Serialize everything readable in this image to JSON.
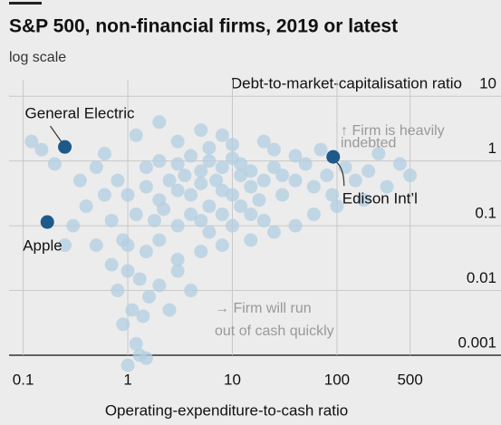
{
  "chart_data": {
    "type": "scatter",
    "title": "S&P 500, non-financial firms, 2019 or latest",
    "subtitle": "log scale",
    "y_axis_label": "Debt-to-market-capitalisation ratio",
    "x_axis_label": "Operating-expenditure-to-cash ratio",
    "xscale": "log",
    "yscale": "log",
    "xlim": [
      0.06,
      3700
    ],
    "ylim": [
      0.001,
      18
    ],
    "xticks": [
      0.1,
      1,
      10,
      100,
      500
    ],
    "yticks": [
      0.001,
      0.01,
      0.1,
      1,
      10
    ],
    "grid": true,
    "color": "#b3cfe2",
    "x": [
      1,
      1.5,
      2,
      2.5,
      3,
      3.5,
      4,
      5,
      6,
      7,
      8,
      10,
      12,
      15,
      18,
      20,
      1.2,
      1.8,
      2.2,
      3,
      4,
      5,
      6,
      8,
      10,
      12,
      15,
      20,
      1.5,
      2,
      3,
      4,
      5,
      6,
      8,
      10,
      12,
      15,
      25,
      30,
      40,
      50,
      60,
      80,
      120,
      150,
      200,
      30,
      40,
      25,
      0.8,
      0.6,
      0.5,
      0.4,
      0.7,
      0.9,
      0.5,
      0.3,
      0.35,
      0.15,
      0.2,
      0.12,
      0.25,
      1,
      1.5,
      2,
      3,
      5,
      8,
      15,
      25,
      40,
      60,
      100,
      1,
      1.3,
      2,
      3,
      0.8,
      1.6,
      4,
      0.7,
      1.1,
      1.4,
      0.9,
      2.5,
      1.2,
      1.3,
      1,
      1.5,
      3,
      5,
      8,
      2,
      10,
      6,
      20,
      1.2,
      0.6,
      300,
      400,
      250,
      500,
      180,
      70,
      90
    ],
    "values": [
      0.3,
      0.4,
      0.25,
      0.5,
      0.35,
      0.6,
      0.3,
      0.45,
      0.2,
      0.5,
      0.35,
      0.3,
      0.6,
      0.4,
      0.25,
      0.5,
      0.15,
      0.12,
      0.18,
      0.1,
      0.15,
      0.12,
      0.08,
      0.15,
      0.1,
      0.2,
      0.15,
      0.12,
      0.8,
      1,
      0.9,
      1.2,
      0.7,
      1,
      0.8,
      1.1,
      0.9,
      0.7,
      0.8,
      0.6,
      0.5,
      0.9,
      0.4,
      0.6,
      0.8,
      0.5,
      0.7,
      0.3,
      1.2,
      1.5,
      0.5,
      0.3,
      0.8,
      0.2,
      0.12,
      0.06,
      0.05,
      0.1,
      0.5,
      1.5,
      0.9,
      2,
      0.05,
      0.05,
      0.04,
      0.06,
      0.03,
      0.04,
      0.05,
      0.06,
      0.08,
      0.1,
      0.15,
      0.2,
      0.02,
      0.015,
      0.012,
      0.02,
      0.01,
      0.008,
      0.01,
      0.025,
      0.005,
      0.004,
      0.003,
      0.005,
      0.0015,
      0.001,
      0.0007,
      0.0009,
      2,
      3,
      2.5,
      4,
      1.8,
      1.6,
      2,
      2.5,
      1.3,
      0.4,
      0.9,
      1.3,
      0.6,
      0.25,
      1.5,
      0.3
    ],
    "highlight_color": "#1d5a8a",
    "highlights": [
      {
        "label": "General Electric",
        "x": 0.25,
        "y": 1.65
      },
      {
        "label": "Apple",
        "x": 0.17,
        "y": 0.114
      },
      {
        "label": "Edison Int’l",
        "x": 92,
        "y": 1.16
      }
    ],
    "annotations": [
      {
        "lines": [
          "↑ Firm is heavily",
          "indebted"
        ]
      },
      {
        "lines": [
          "→ Firm will run",
          "out of cash quickly"
        ]
      }
    ]
  }
}
